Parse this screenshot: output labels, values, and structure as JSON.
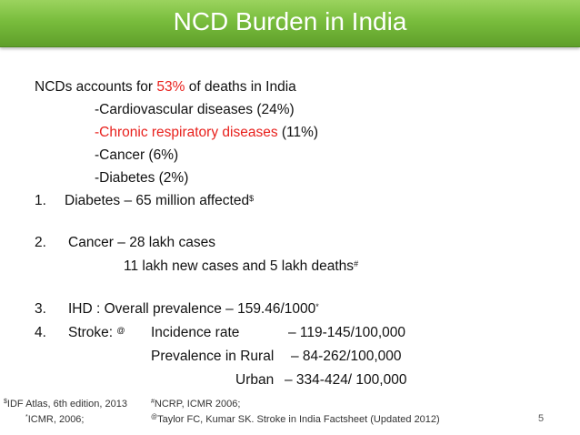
{
  "title": "NCD Burden in India",
  "intro": {
    "prefix": "NCDs accounts for ",
    "highlight": "53%",
    "suffix": " of deaths in India"
  },
  "causes": {
    "cardio": "-Cardiovascular diseases (24%)",
    "resp_red": "-Chronic respiratory diseases",
    "resp_rest": " (11%)",
    "cancer": "-Cancer (6%)",
    "diabetes": "-Diabetes (2%)"
  },
  "items": {
    "n1": "1.",
    "diabetes": "Diabetes – 65 million affected",
    "diabetes_mark": "$",
    "n2": "2.",
    "cancer": "Cancer – 28 lakh cases",
    "cancer_sub": "11 lakh new cases and 5 lakh deaths",
    "cancer_mark": "#",
    "n3": "3.",
    "ihd": "IHD : Overall prevalence – 159.46/1000",
    "ihd_mark": "*",
    "n4": "4.",
    "stroke": "Stroke: ",
    "stroke_mark": "@",
    "incidence_label": "Incidence rate",
    "incidence_value": "– 119-145/100,000",
    "rural_label": "Prevalence in Rural",
    "rural_value": "– 84-262/100,000",
    "urban_label": "Urban",
    "urban_value": "– 334-424/ 100,000"
  },
  "footnotes": {
    "f1_mark": "$",
    "f1": "IDF Atlas, 6th edition, 2013",
    "f2_mark": "*",
    "f2": "ICMR, 2006;",
    "f3_mark": "#",
    "f3": "NCRP, ICMR 2006;",
    "f4_mark": "@",
    "f4": "Taylor FC,   Kumar SK. Stroke in India Factsheet (Updated 2012)"
  },
  "page_number": "5"
}
